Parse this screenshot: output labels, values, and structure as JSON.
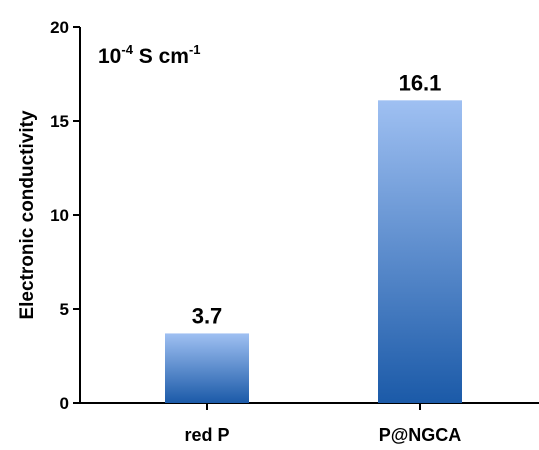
{
  "chart_data": {
    "type": "bar",
    "categories": [
      "red P",
      "P@NGCA"
    ],
    "values": [
      3.7,
      16.1
    ],
    "data_labels": [
      "3.7",
      "16.1"
    ],
    "title": "",
    "xlabel": "",
    "ylabel": "Electronic conductivity",
    "unit": {
      "base": "10",
      "exp1": "-4",
      "mid": " S cm",
      "exp2": "-1"
    },
    "ylim": [
      0,
      20
    ],
    "yticks": [
      0,
      5,
      10,
      15,
      20
    ],
    "grid": false,
    "bar_gradient": {
      "top": "#9fc0f2",
      "bottom": "#1b5aa8"
    }
  }
}
